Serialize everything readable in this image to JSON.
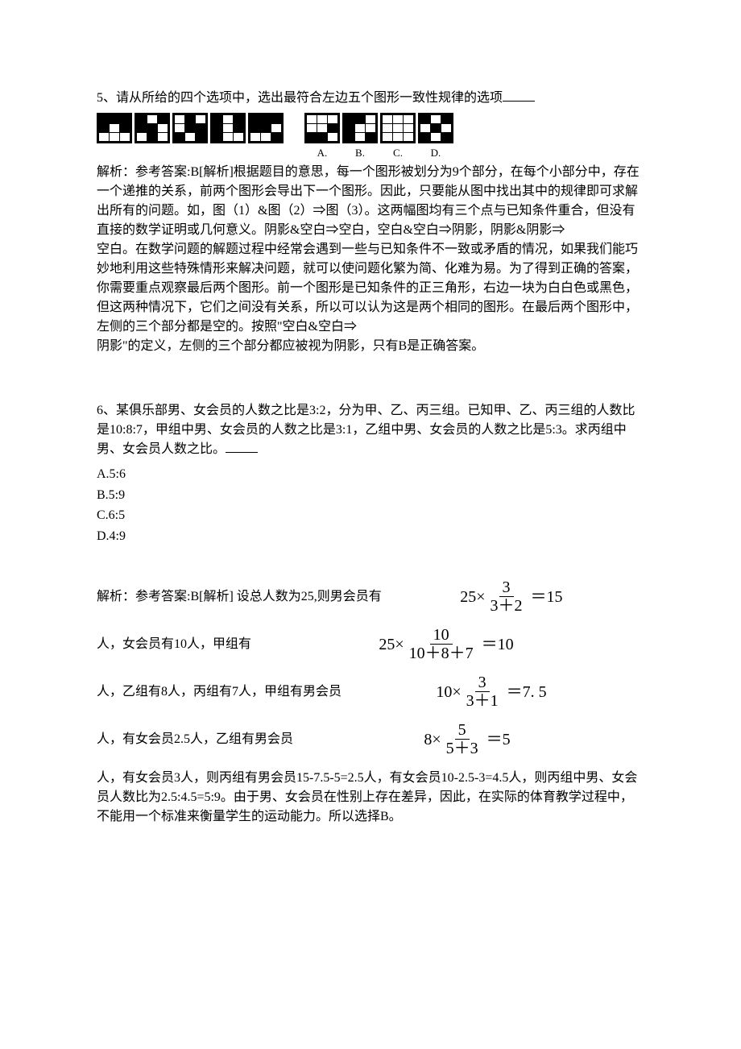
{
  "page": {
    "background_color": "#ffffff",
    "text_color": "#000000",
    "font_family": "SimSun",
    "body_fontsize": 16
  },
  "q5": {
    "number": "5、",
    "stem": "请从所给的四个选项中，选出最符合左边五个图形一致性规律的选项",
    "grids": {
      "type": "grid-pattern",
      "rows": 3,
      "cols": 3,
      "cell_border_color": "#000000",
      "outer_border_color": "#000000",
      "filled_color": "#000000",
      "empty_color": "#ffffff",
      "left": [
        [
          [
            1,
            1,
            1
          ],
          [
            1,
            0,
            1
          ],
          [
            0,
            0,
            0
          ]
        ],
        [
          [
            1,
            0,
            1
          ],
          [
            1,
            1,
            0
          ],
          [
            0,
            1,
            0
          ]
        ],
        [
          [
            0,
            1,
            0
          ],
          [
            0,
            1,
            1
          ],
          [
            1,
            0,
            1
          ]
        ],
        [
          [
            1,
            0,
            1
          ],
          [
            1,
            0,
            1
          ],
          [
            1,
            0,
            0
          ]
        ],
        [
          [
            1,
            1,
            1
          ],
          [
            1,
            1,
            0
          ],
          [
            0,
            0,
            1
          ]
        ]
      ],
      "right": [
        {
          "label": "A.",
          "cells": [
            [
              0,
              0,
              0
            ],
            [
              0,
              0,
              1
            ],
            [
              1,
              1,
              0
            ]
          ]
        },
        {
          "label": "B.",
          "cells": [
            [
              1,
              1,
              0
            ],
            [
              1,
              0,
              0
            ],
            [
              1,
              0,
              1
            ]
          ]
        },
        {
          "label": "C.",
          "cells": [
            [
              0,
              0,
              0
            ],
            [
              0,
              0,
              0
            ],
            [
              0,
              0,
              0
            ]
          ]
        },
        {
          "label": "D.",
          "cells": [
            [
              1,
              0,
              1
            ],
            [
              0,
              1,
              0
            ],
            [
              1,
              0,
              1
            ]
          ]
        }
      ]
    },
    "analysis_label": "解析：",
    "analysis_text": "参考答案:B[解析]根据题目的意思，每一个图形被划分为9个部分，在每个小部分中，存在一个递推的关系，前两个图形会导出下一个图形。因此，只要能从图中找出其中的规律即可求解出所有的问题。如，图（1）&图（2）⇒图（3）。这两幅图均有三个点与已知条件重合，但没有直接的数学证明或几何意义。阴影&空白⇒空白，空白&空白⇒阴影，阴影&阴影⇒",
    "analysis_text2": "空白。在数学问题的解题过程中经常会遇到一些与已知条件不一致或矛盾的情况，如果我们能巧妙地利用这些特殊情形来解决问题，就可以使问题化繁为简、化难为易。为了得到正确的答案，你需要重点观察最后两个图形。前一个图形是已知条件的正三角形，右边一块为白白色或黑色，但这两种情况下，它们之间没有关系，所以可以认为这是两个相同的图形。在最后两个图形中，左侧的三个部分都是空的。按照\"空白&空白⇒",
    "analysis_text3": "阴影\"的定义，左侧的三个部分都应被视为阴影，只有B是正确答案。"
  },
  "q6": {
    "number": "6、",
    "stem": "某俱乐部男、女会员的人数之比是3:2，分为甲、乙、丙三组。已知甲、乙、丙三组的人数比是10:8:7，甲组中男、女会员的人数之比是3:1，乙组中男、女会员的人数之比是5:3。求丙组中男、女会员人数之比。",
    "options": {
      "A": "A.5:6",
      "B": "B.5:9",
      "C": "C.6:5",
      "D": "D.4:9"
    },
    "analysis_label": "解析：",
    "lines": {
      "l1_lead": "参考答案:B[解析] 设总人数为25,则男会员有",
      "l1_math": {
        "lhs": "25×",
        "num": "3",
        "den": "3＋2",
        "rhs": "＝15"
      },
      "l2_lead": "人，女会员有10人，甲组有",
      "l2_math": {
        "lhs": "25×",
        "num": "10",
        "den": "10＋8＋7",
        "rhs": "＝10"
      },
      "l3_lead": "人，乙组有8人，丙组有7人，甲组有男会员",
      "l3_math": {
        "lhs": "10×",
        "num": "3",
        "den": "3＋1",
        "rhs": "＝7. 5"
      },
      "l4_lead": "人，有女会员2.5人，乙组有男会员",
      "l4_math": {
        "lhs": "8×",
        "num": "5",
        "den": "5＋3",
        "rhs": "＝5"
      },
      "tail": "人，有女会员3人，则丙组有男会员15-7.5-5=2.5人，有女会员10-2.5-3=4.5人，则丙组中男、女会员人数比为2.5:4.5=5:9。由于男、女会员在性别上存在差异，因此，在实际的体育教学过程中，不能用一个标准来衡量学生的运动能力。所以选择B。"
    }
  }
}
